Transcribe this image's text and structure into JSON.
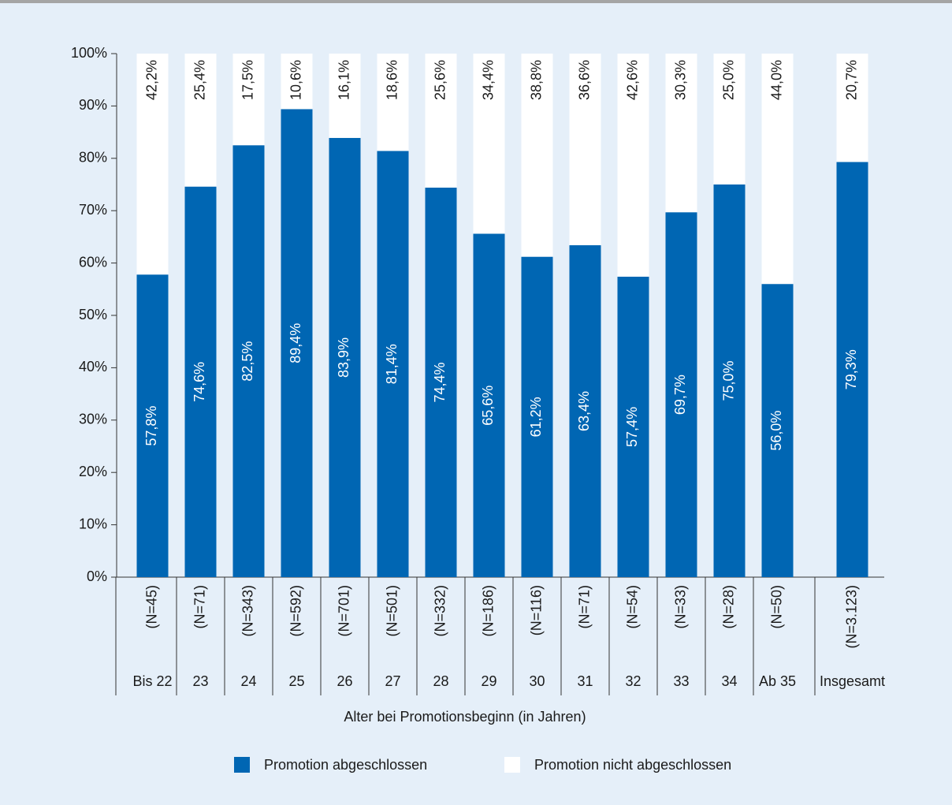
{
  "chart_data": {
    "type": "stacked_bar",
    "x_label": "Alter bei Promotionsbeginn (in Jahren)",
    "categories": [
      "Bis 22",
      "23",
      "24",
      "25",
      "26",
      "27",
      "28",
      "29",
      "30",
      "31",
      "32",
      "33",
      "34",
      "Ab 35",
      "Insgesamt"
    ],
    "n_labels": [
      "(N=45)",
      "(N=71)",
      "(N=343)",
      "(N=592)",
      "(N=701)",
      "(N=501)",
      "(N=332)",
      "(N=186)",
      "(N=116)",
      "(N=71)",
      "(N=54)",
      "(N=33)",
      "(N=28)",
      "(N=50)",
      "(N=3.123)"
    ],
    "series": [
      {
        "name": "Promotion abgeschlossen",
        "color": "#0066b3",
        "values": [
          57.8,
          74.6,
          82.5,
          89.4,
          83.9,
          81.4,
          74.4,
          65.6,
          61.2,
          63.4,
          57.4,
          69.7,
          75.0,
          56.0,
          79.3
        ],
        "value_labels": [
          "57,8%",
          "74,6%",
          "82,5%",
          "89,4%",
          "83,9%",
          "81,4%",
          "74,4%",
          "65,6%",
          "61,2%",
          "63,4%",
          "57,4%",
          "69,7%",
          "75,0%",
          "56,0%",
          "79,3%"
        ]
      },
      {
        "name": "Promotion nicht abgeschlossen",
        "color": "#ffffff",
        "values": [
          42.2,
          25.4,
          17.5,
          10.6,
          16.1,
          18.6,
          25.6,
          34.4,
          38.8,
          36.6,
          42.6,
          30.3,
          25.0,
          44.0,
          20.7
        ],
        "value_labels": [
          "42,2%",
          "25,4%",
          "17,5%",
          "10,6%",
          "16,1%",
          "18,6%",
          "25,6%",
          "34,4%",
          "38,8%",
          "36,6%",
          "42,6%",
          "30,3%",
          "25,0%",
          "44,0%",
          "20,7%"
        ]
      }
    ],
    "ylim": [
      0,
      100
    ],
    "yticks": [
      {
        "value": 0,
        "label": "0%"
      },
      {
        "value": 10,
        "label": "10%"
      },
      {
        "value": 20,
        "label": "20%"
      },
      {
        "value": 30,
        "label": "30%"
      },
      {
        "value": 40,
        "label": "40%"
      },
      {
        "value": 50,
        "label": "50%"
      },
      {
        "value": 60,
        "label": "60%"
      },
      {
        "value": 70,
        "label": "70%"
      },
      {
        "value": 80,
        "label": "80%"
      },
      {
        "value": 90,
        "label": "90%"
      },
      {
        "value": 100,
        "label": "100%"
      }
    ],
    "legend": "bottom"
  }
}
